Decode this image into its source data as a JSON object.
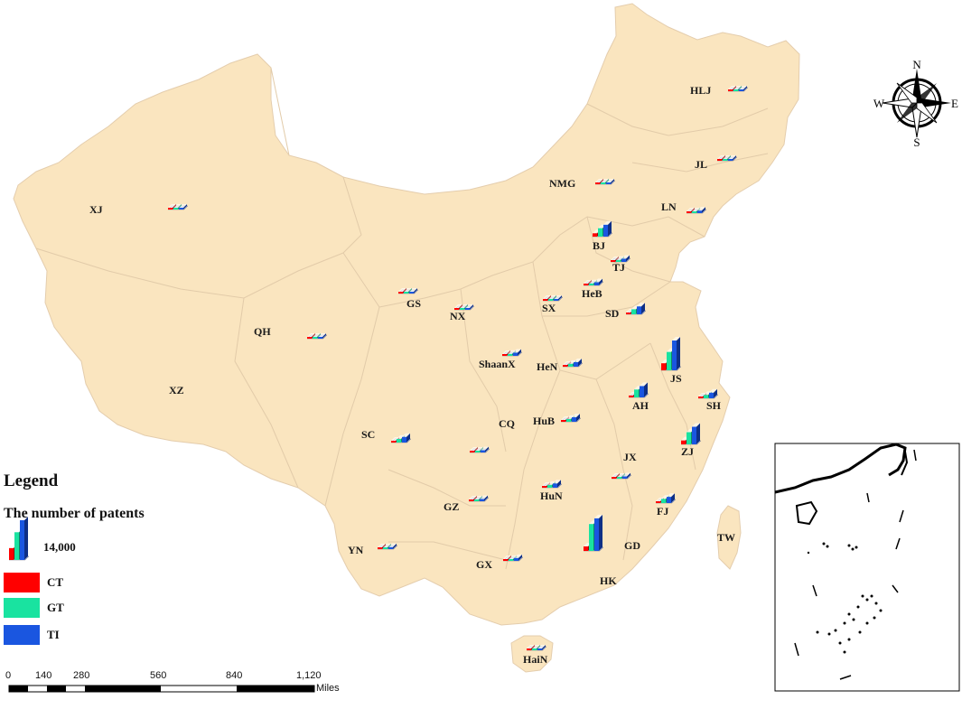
{
  "legend": {
    "title": "Legend",
    "subtitle": "The number of patents",
    "scale_value": "14,000",
    "items": [
      {
        "label": "CT",
        "color": "#ff0000"
      },
      {
        "label": "GT",
        "color": "#19e3a0"
      },
      {
        "label": "TI",
        "color": "#1a56e0"
      }
    ]
  },
  "compass": {
    "n": "N",
    "s": "S",
    "e": "E",
    "w": "W"
  },
  "scale_bar": {
    "ticks": [
      "0",
      "140",
      "280",
      "560",
      "840",
      "1,120"
    ],
    "unit": "Miles"
  },
  "colors": {
    "land": "#fae5bf",
    "border": "#e4cdad"
  },
  "provinces": [
    {
      "code": "HLJ",
      "ct": 0,
      "gt": 160,
      "ti": 400
    },
    {
      "code": "JL",
      "ct": 0,
      "gt": 120,
      "ti": 300
    },
    {
      "code": "NMG",
      "ct": 0,
      "gt": 80,
      "ti": 250
    },
    {
      "code": "LN",
      "ct": 300,
      "gt": 600,
      "ti": 900
    },
    {
      "code": "BJ",
      "ct": 1200,
      "gt": 3000,
      "ti": 4200
    },
    {
      "code": "TJ",
      "ct": 250,
      "gt": 700,
      "ti": 1100
    },
    {
      "code": "HeB",
      "ct": 300,
      "gt": 700,
      "ti": 1100
    },
    {
      "code": "SX",
      "ct": 80,
      "gt": 250,
      "ti": 450
    },
    {
      "code": "SD",
      "ct": 600,
      "gt": 1800,
      "ti": 2800
    },
    {
      "code": "NX",
      "ct": 0,
      "gt": 80,
      "ti": 180
    },
    {
      "code": "GS",
      "ct": 0,
      "gt": 150,
      "ti": 300
    },
    {
      "code": "XJ",
      "ct": 0,
      "gt": 80,
      "ti": 150
    },
    {
      "code": "QH",
      "ct": 0,
      "gt": 50,
      "ti": 100
    },
    {
      "code": "XZ",
      "ct": 0,
      "gt": 0,
      "ti": 0
    },
    {
      "code": "ShaanX",
      "ct": 200,
      "gt": 700,
      "ti": 1100
    },
    {
      "code": "HeN",
      "ct": 300,
      "gt": 1000,
      "ti": 1600
    },
    {
      "code": "JS",
      "ct": 2500,
      "gt": 6500,
      "ti": 10500
    },
    {
      "code": "AH",
      "ct": 700,
      "gt": 2800,
      "ti": 4000
    },
    {
      "code": "SH",
      "ct": 500,
      "gt": 1200,
      "ti": 2000
    },
    {
      "code": "HuB",
      "ct": 300,
      "gt": 1000,
      "ti": 1600
    },
    {
      "code": "CQ",
      "ct": 150,
      "gt": 500,
      "ti": 800
    },
    {
      "code": "SC",
      "ct": 400,
      "gt": 1300,
      "ti": 2000
    },
    {
      "code": "ZJ",
      "ct": 1400,
      "gt": 4300,
      "ti": 6200
    },
    {
      "code": "JX",
      "ct": 150,
      "gt": 500,
      "ti": 800
    },
    {
      "code": "HuN",
      "ct": 300,
      "gt": 1000,
      "ti": 1500
    },
    {
      "code": "GZ",
      "ct": 150,
      "gt": 500,
      "ti": 800
    },
    {
      "code": "FJ",
      "ct": 500,
      "gt": 1500,
      "ti": 2200
    },
    {
      "code": "YN",
      "ct": 100,
      "gt": 400,
      "ti": 700
    },
    {
      "code": "GX",
      "ct": 200,
      "gt": 600,
      "ti": 1000
    },
    {
      "code": "GD",
      "ct": 1600,
      "gt": 9500,
      "ti": 11500
    },
    {
      "code": "HK",
      "ct": 0,
      "gt": 0,
      "ti": 0
    },
    {
      "code": "TW",
      "ct": 0,
      "gt": 0,
      "ti": 0
    },
    {
      "code": "HaiN",
      "ct": 0,
      "gt": 80,
      "ti": 150
    }
  ]
}
